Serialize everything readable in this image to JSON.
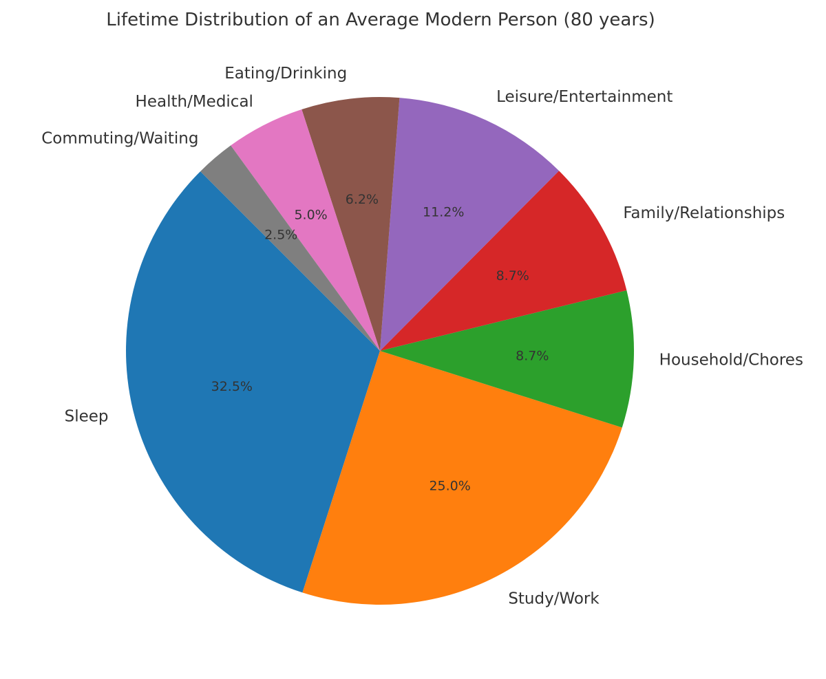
{
  "chart_data": {
    "type": "pie",
    "title": "Lifetime Distribution of an Average Modern Person (80 years)",
    "start_angle_deg": 135,
    "direction": "counterclockwise",
    "slices": [
      {
        "label": "Sleep",
        "value": 32.5,
        "pct_label": "32.5%",
        "color": "#1f77b4"
      },
      {
        "label": "Study/Work",
        "value": 25.0,
        "pct_label": "25.0%",
        "color": "#ff7f0e"
      },
      {
        "label": "Household/Chores",
        "value": 8.7,
        "pct_label": "8.7%",
        "color": "#2ca02c"
      },
      {
        "label": "Family/Relationships",
        "value": 8.7,
        "pct_label": "8.7%",
        "color": "#d62728"
      },
      {
        "label": "Leisure/Entertainment",
        "value": 11.2,
        "pct_label": "11.2%",
        "color": "#9467bd"
      },
      {
        "label": "Eating/Drinking",
        "value": 6.2,
        "pct_label": "6.2%",
        "color": "#8c564b"
      },
      {
        "label": "Health/Medical",
        "value": 5.0,
        "pct_label": "5.0%",
        "color": "#e377c2"
      },
      {
        "label": "Commuting/Waiting",
        "value": 2.5,
        "pct_label": "2.5%",
        "color": "#7f7f7f"
      }
    ]
  }
}
